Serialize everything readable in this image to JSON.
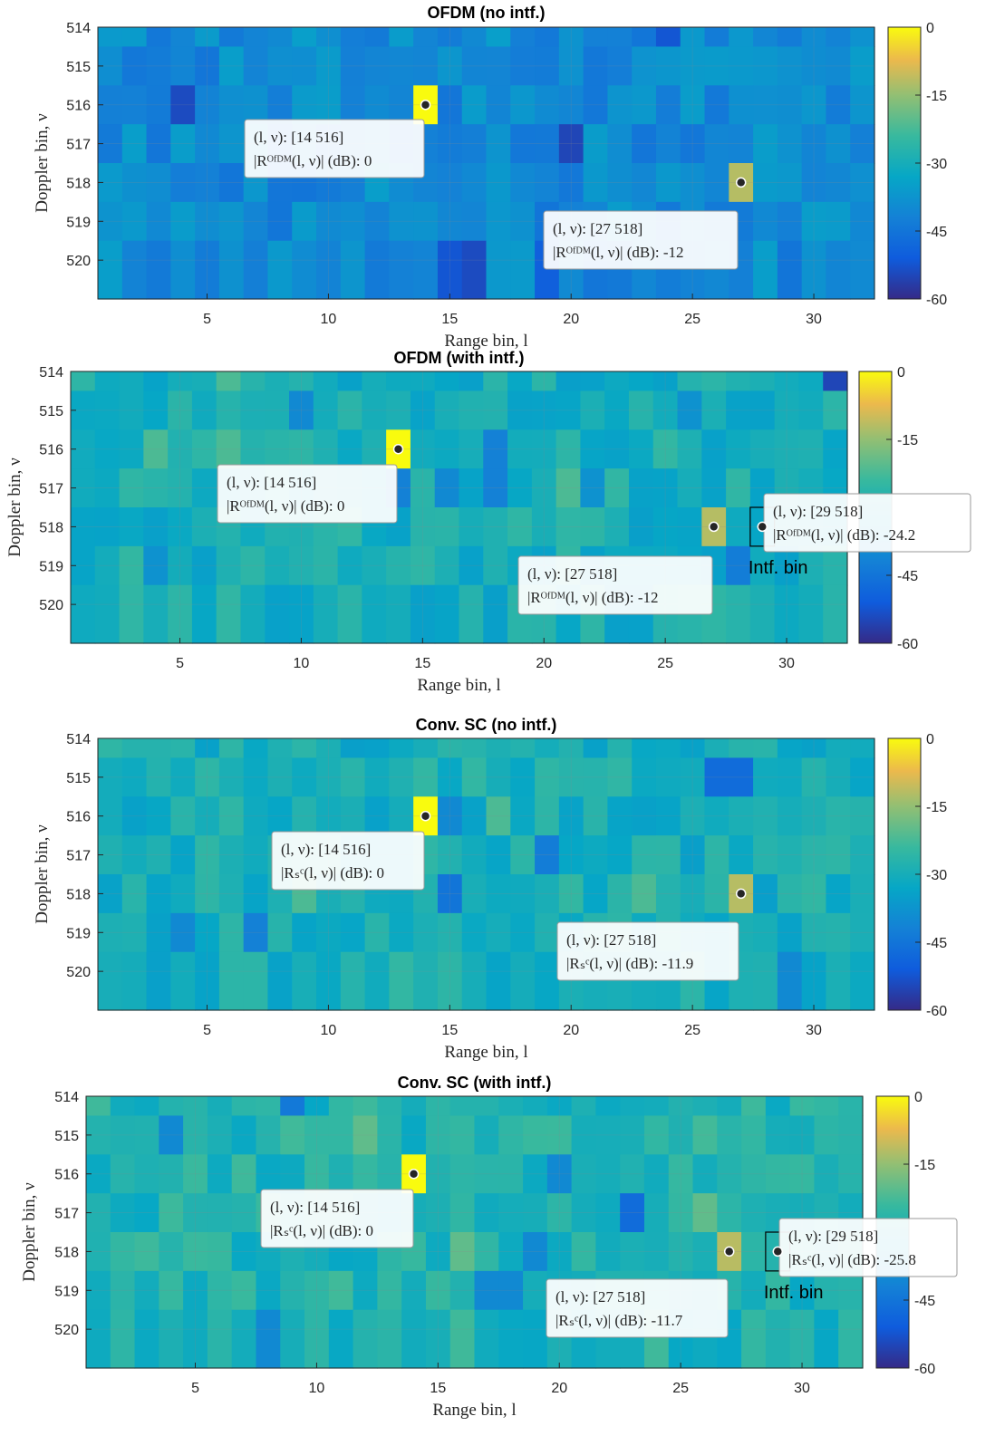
{
  "page": {
    "xlabel": "Range bin, l",
    "ylabel": "Doppler bin, ν",
    "intf_label": "Intf. bin"
  },
  "chart_data": [
    {
      "type": "heatmap",
      "title": "OFDM (no intf.)",
      "xlabel": "Range bin, l",
      "ylabel": "Doppler bin, ν",
      "x_range": [
        1,
        32
      ],
      "y_range": [
        514,
        520
      ],
      "x_ticks": [
        5,
        10,
        15,
        20,
        25,
        30
      ],
      "y_ticks": [
        514,
        515,
        516,
        517,
        518,
        519,
        520
      ],
      "colorbar_ticks": [
        0,
        -15,
        -30,
        -45,
        -60
      ],
      "clim": [
        -60,
        0
      ],
      "background_db": -40,
      "cells": [
        {
          "l": 14,
          "nu": 516,
          "db": 0
        },
        {
          "l": 27,
          "nu": 518,
          "db": -12
        },
        {
          "l": 4,
          "nu": 516,
          "db": -54
        },
        {
          "l": 20,
          "nu": 517,
          "db": -55
        },
        {
          "l": 24,
          "nu": 514,
          "db": -52
        },
        {
          "l": 19,
          "nu": 520,
          "db": -50
        },
        {
          "l": 16,
          "nu": 520,
          "db": -54
        },
        {
          "l": 15,
          "nu": 520,
          "db": -52
        },
        {
          "l": 18,
          "nu": 520,
          "db": -36
        },
        {
          "l": 9,
          "nu": 514,
          "db": -35
        },
        {
          "l": 17,
          "nu": 514,
          "db": -35
        },
        {
          "l": 25,
          "nu": 515,
          "db": -36
        }
      ],
      "datatips": [
        {
          "l": 14,
          "nu": 516,
          "line1": "(l, ν):  [14 516]",
          "line2": "|Rᴼᶠᴰᴹ(l, ν)| (dB): 0"
        },
        {
          "l": 27,
          "nu": 518,
          "line1": "(l, ν):  [27 518]",
          "line2": "|Rᴼᶠᴰᴹ(l, ν)| (dB): -12"
        }
      ],
      "intf_box": null
    },
    {
      "type": "heatmap",
      "title": "OFDM (with intf.)",
      "xlabel": "Range bin, l",
      "ylabel": "Doppler bin, ν",
      "x_range": [
        1,
        32
      ],
      "y_range": [
        514,
        520
      ],
      "x_ticks": [
        5,
        10,
        15,
        20,
        25,
        30
      ],
      "y_ticks": [
        514,
        515,
        516,
        517,
        518,
        519,
        520
      ],
      "colorbar_ticks": [
        0,
        -15,
        -45,
        -60
      ],
      "clim": [
        -60,
        0
      ],
      "background_db": -30,
      "cells": [
        {
          "l": 14,
          "nu": 516,
          "db": 0
        },
        {
          "l": 27,
          "nu": 518,
          "db": -12
        },
        {
          "l": 18,
          "nu": 516,
          "db": -42
        },
        {
          "l": 18,
          "nu": 517,
          "db": -42
        },
        {
          "l": 32,
          "nu": 514,
          "db": -55
        },
        {
          "l": 28,
          "nu": 519,
          "db": -43
        },
        {
          "l": 14,
          "nu": 517,
          "db": -42
        },
        {
          "l": 26,
          "nu": 515,
          "db": -38
        },
        {
          "l": 10,
          "nu": 515,
          "db": -40
        },
        {
          "l": 4,
          "nu": 519,
          "db": -38
        },
        {
          "l": 21,
          "nu": 517,
          "db": -22
        },
        {
          "l": 4,
          "nu": 516,
          "db": -22
        },
        {
          "l": 7,
          "nu": 516,
          "db": -22
        },
        {
          "l": 7,
          "nu": 514,
          "db": -22
        },
        {
          "l": 16,
          "nu": 517,
          "db": -40
        },
        {
          "l": 22,
          "nu": 517,
          "db": -38
        }
      ],
      "datatips": [
        {
          "l": 14,
          "nu": 516,
          "line1": "(l, ν):  [14 516]",
          "line2": "|Rᴼᶠᴰᴹ(l, ν)| (dB): 0"
        },
        {
          "l": 27,
          "nu": 518,
          "line1": "(l, ν):  [27 518]",
          "line2": "|Rᴼᶠᴰᴹ(l, ν)| (dB): -12"
        },
        {
          "l": 29,
          "nu": 518,
          "line1": "(l, ν):  [29 518]",
          "line2": "|Rᴼᶠᴰᴹ(l, ν)| (dB): -24.2"
        }
      ],
      "intf_box": {
        "l": 29,
        "nu_start": 517.5,
        "nu_end": 518.5
      }
    },
    {
      "type": "heatmap",
      "title": "Conv. SC (no intf.)",
      "xlabel": "Range bin, l",
      "ylabel": "Doppler bin, ν",
      "x_range": [
        1,
        32
      ],
      "y_range": [
        514,
        520
      ],
      "x_ticks": [
        5,
        10,
        15,
        20,
        25,
        30
      ],
      "y_ticks": [
        514,
        515,
        516,
        517,
        518,
        519,
        520
      ],
      "colorbar_ticks": [
        0,
        -15,
        -30,
        -45,
        -60
      ],
      "clim": [
        -60,
        0
      ],
      "background_db": -30,
      "cells": [
        {
          "l": 14,
          "nu": 516,
          "db": 0
        },
        {
          "l": 27,
          "nu": 518,
          "db": -11.9
        },
        {
          "l": 26,
          "nu": 515,
          "db": -47
        },
        {
          "l": 27,
          "nu": 515,
          "db": -47
        },
        {
          "l": 15,
          "nu": 518,
          "db": -45
        },
        {
          "l": 19,
          "nu": 517,
          "db": -43
        },
        {
          "l": 7,
          "nu": 519,
          "db": -42
        },
        {
          "l": 15,
          "nu": 516,
          "db": -40
        },
        {
          "l": 4,
          "nu": 519,
          "db": -40
        },
        {
          "l": 9,
          "nu": 518,
          "db": -22
        },
        {
          "l": 17,
          "nu": 516,
          "db": -22
        },
        {
          "l": 23,
          "nu": 518,
          "db": -22
        },
        {
          "l": 29,
          "nu": 520,
          "db": -40
        }
      ],
      "datatips": [
        {
          "l": 14,
          "nu": 516,
          "line1": "(l, ν):  [14 516]",
          "line2": "|Rₛᶜ(l, ν)| (dB): 0"
        },
        {
          "l": 27,
          "nu": 518,
          "line1": "(l, ν):  [27 518]",
          "line2": "|Rₛᶜ(l, ν)| (dB): -11.9"
        }
      ],
      "intf_box": null
    },
    {
      "type": "heatmap",
      "title": "Conv. SC (with intf.)",
      "xlabel": "Range bin, l",
      "ylabel": "Doppler bin, ν",
      "x_range": [
        1,
        32
      ],
      "y_range": [
        514,
        520
      ],
      "x_ticks": [
        5,
        10,
        15,
        20,
        25,
        30
      ],
      "y_ticks": [
        514,
        515,
        516,
        517,
        518,
        519,
        520
      ],
      "colorbar_ticks": [
        0,
        -15,
        -45,
        -60
      ],
      "clim": [
        -60,
        0
      ],
      "background_db": -28,
      "cells": [
        {
          "l": 14,
          "nu": 516,
          "db": 0
        },
        {
          "l": 27,
          "nu": 518,
          "db": -11.7
        },
        {
          "l": 23,
          "nu": 517,
          "db": -47
        },
        {
          "l": 9,
          "nu": 514,
          "db": -44
        },
        {
          "l": 17,
          "nu": 519,
          "db": -40
        },
        {
          "l": 18,
          "nu": 519,
          "db": -40
        },
        {
          "l": 20,
          "nu": 516,
          "db": -40
        },
        {
          "l": 19,
          "nu": 518,
          "db": -40
        },
        {
          "l": 8,
          "nu": 520,
          "db": -40
        },
        {
          "l": 16,
          "nu": 518,
          "db": -20
        },
        {
          "l": 26,
          "nu": 517,
          "db": -20
        },
        {
          "l": 12,
          "nu": 515,
          "db": -20
        },
        {
          "l": 4,
          "nu": 515,
          "db": -40
        }
      ],
      "datatips": [
        {
          "l": 14,
          "nu": 516,
          "line1": "(l, ν):  [14 516]",
          "line2": "|Rₛᶜ(l, ν)| (dB): 0"
        },
        {
          "l": 27,
          "nu": 518,
          "line1": "(l, ν):  [27 518]",
          "line2": "|Rₛᶜ(l, ν)| (dB): -11.7"
        },
        {
          "l": 29,
          "nu": 518,
          "line1": "(l, ν):  [29 518]",
          "line2": "|Rₛᶜ(l, ν)| (dB): -25.8"
        }
      ],
      "intf_box": {
        "l": 29,
        "nu_start": 517.5,
        "nu_end": 518.5
      }
    }
  ]
}
